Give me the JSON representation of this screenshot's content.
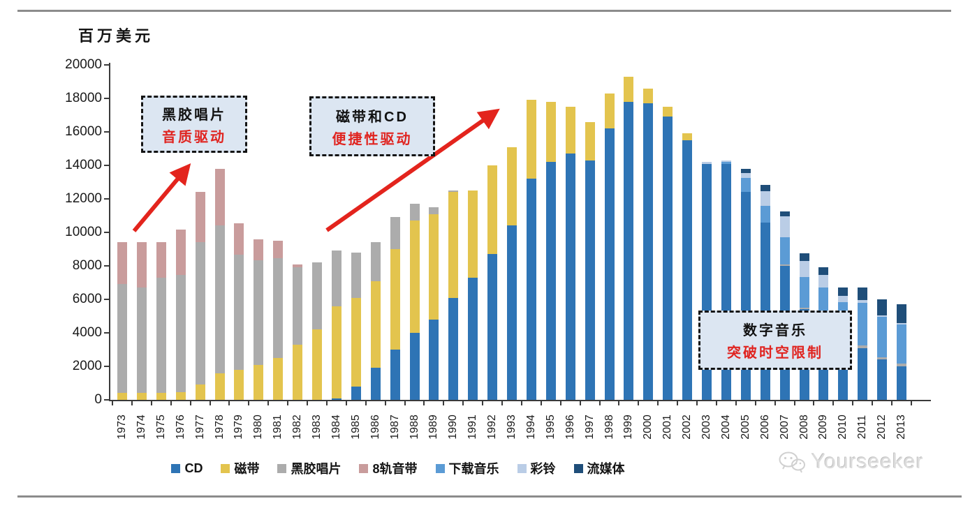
{
  "watermark": {
    "text": "Yourseeker"
  },
  "annotations": [
    {
      "line1": "黑胶唱片",
      "line2": "音质驱动"
    },
    {
      "line1": "磁带和CD",
      "line2": "便捷性驱动"
    },
    {
      "line1": "数字音乐",
      "line2": "突破时空限制"
    }
  ],
  "chart_data": {
    "type": "bar",
    "stacked": true,
    "title": "",
    "ylabel": "百万美元",
    "xlabel": "",
    "unit": "百万美元",
    "ylim": [
      0,
      20000
    ],
    "y_ticks": [
      0,
      2000,
      4000,
      6000,
      8000,
      10000,
      12000,
      14000,
      16000,
      18000,
      20000
    ],
    "grid": false,
    "legend_position": "bottom",
    "accent_red": "#e3241d",
    "categories": [
      "1973",
      "1974",
      "1975",
      "1976",
      "1977",
      "1978",
      "1979",
      "1980",
      "1981",
      "1982",
      "1983",
      "1984",
      "1985",
      "1986",
      "1987",
      "1988",
      "1989",
      "1990",
      "1991",
      "1992",
      "1993",
      "1994",
      "1995",
      "1996",
      "1997",
      "1998",
      "1999",
      "2000",
      "2001",
      "2002",
      "2003",
      "2004",
      "2005",
      "2006",
      "2007",
      "2008",
      "2009",
      "2010",
      "2011",
      "2012",
      "2013"
    ],
    "series": [
      {
        "name": "CD",
        "color": "#2E74B5",
        "values": [
          0,
          0,
          0,
          0,
          0,
          0,
          0,
          0,
          0,
          0,
          0,
          100,
          800,
          1900,
          3000,
          4000,
          4800,
          6100,
          7300,
          8700,
          10400,
          13200,
          14200,
          14700,
          14300,
          16200,
          17800,
          17700,
          16900,
          15500,
          14100,
          14100,
          12400,
          10600,
          8000,
          5400,
          4800,
          3600,
          3100,
          2400,
          2000
        ]
      },
      {
        "name": "磁带",
        "color": "#E3C44E",
        "values": [
          400,
          400,
          400,
          450,
          900,
          1600,
          1800,
          2100,
          2500,
          3300,
          4200,
          5500,
          5300,
          5200,
          6000,
          6700,
          6300,
          6300,
          5200,
          5300,
          4700,
          4700,
          3600,
          2800,
          2300,
          2100,
          1500,
          900,
          600,
          400,
          0,
          0,
          0,
          0,
          0,
          0,
          0,
          0,
          0,
          0,
          0
        ]
      },
      {
        "name": "黑胶唱片",
        "color": "#ACACAC",
        "values": [
          6500,
          6300,
          6900,
          7000,
          8500,
          8800,
          6850,
          6250,
          5950,
          4600,
          4000,
          3300,
          2700,
          2300,
          1900,
          1000,
          400,
          100,
          0,
          0,
          0,
          0,
          0,
          0,
          0,
          0,
          0,
          0,
          0,
          0,
          0,
          0,
          0,
          0,
          100,
          100,
          100,
          150,
          150,
          150,
          150
        ]
      },
      {
        "name": "8轨音带",
        "color": "#C99C9C",
        "values": [
          2500,
          2700,
          2100,
          2700,
          3000,
          3400,
          1900,
          1250,
          1050,
          200,
          0,
          0,
          0,
          0,
          0,
          0,
          0,
          0,
          0,
          0,
          0,
          0,
          0,
          0,
          0,
          0,
          0,
          0,
          0,
          0,
          0,
          0,
          0,
          0,
          0,
          0,
          0,
          0,
          0,
          0,
          0
        ]
      },
      {
        "name": "下载音乐",
        "color": "#5B9BD5",
        "values": [
          0,
          0,
          0,
          0,
          0,
          0,
          0,
          0,
          0,
          0,
          0,
          0,
          0,
          0,
          0,
          0,
          0,
          0,
          0,
          0,
          0,
          0,
          0,
          0,
          0,
          0,
          0,
          0,
          0,
          0,
          0,
          100,
          850,
          1000,
          1600,
          1850,
          1800,
          2100,
          2550,
          2400,
          2350
        ]
      },
      {
        "name": "彩铃",
        "color": "#BACDE6",
        "values": [
          0,
          0,
          0,
          0,
          0,
          0,
          0,
          0,
          0,
          0,
          0,
          0,
          0,
          0,
          0,
          0,
          0,
          0,
          0,
          0,
          0,
          0,
          0,
          0,
          0,
          0,
          0,
          0,
          0,
          0,
          100,
          100,
          300,
          850,
          1250,
          950,
          750,
          350,
          150,
          100,
          100
        ]
      },
      {
        "name": "流媒体",
        "color": "#1F4E79",
        "values": [
          0,
          0,
          0,
          0,
          0,
          0,
          0,
          0,
          0,
          0,
          0,
          0,
          0,
          0,
          0,
          0,
          0,
          0,
          0,
          0,
          0,
          0,
          0,
          0,
          0,
          0,
          0,
          0,
          0,
          0,
          0,
          0,
          250,
          400,
          300,
          450,
          450,
          500,
          750,
          950,
          1100
        ]
      }
    ]
  }
}
